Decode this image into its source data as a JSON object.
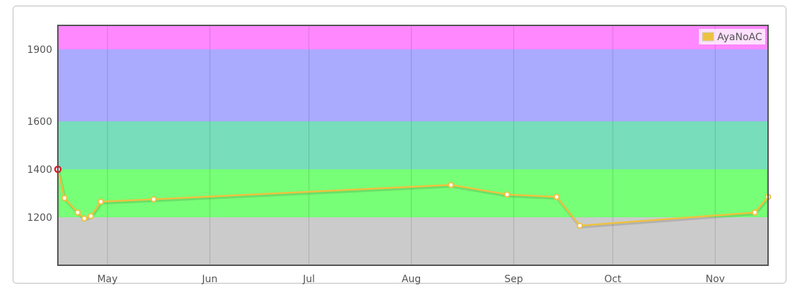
{
  "chart_data": {
    "type": "line",
    "x_axis": {
      "type": "date",
      "tick_labels": [
        "May",
        "Jun",
        "Jul",
        "Aug",
        "Sep",
        "Oct",
        "Nov"
      ],
      "tick_dates": [
        "2014-05-01",
        "2014-06-01",
        "2014-07-01",
        "2014-08-01",
        "2014-09-01",
        "2014-10-01",
        "2014-11-01"
      ],
      "range": [
        "2014-04-16",
        "2014-11-17"
      ]
    },
    "y_axis": {
      "tick_labels": [
        "1200",
        "1400",
        "1600",
        "1900"
      ],
      "tick_values": [
        1200,
        1400,
        1600,
        1900
      ],
      "range": [
        1000,
        2000
      ],
      "scale": "linear"
    },
    "grid": "vertical lines at month ticks",
    "legend": {
      "position": "top-right",
      "entries": [
        "AyaNoAC"
      ]
    },
    "bands": [
      {
        "from": 1000,
        "to": 1200,
        "color": "#cbcbcb"
      },
      {
        "from": 1200,
        "to": 1400,
        "color": "#77ff77"
      },
      {
        "from": 1400,
        "to": 1600,
        "color": "#77ddbb"
      },
      {
        "from": 1600,
        "to": 1900,
        "color": "#aaaaff"
      },
      {
        "from": 1900,
        "to": 2000,
        "color": "#ff88ff"
      }
    ],
    "series": [
      {
        "name": "AyaNoAC",
        "color": "#edc240",
        "points": [
          {
            "x": "2014-04-16",
            "y": 1400,
            "highlighted": true
          },
          {
            "x": "2014-04-18",
            "y": 1280
          },
          {
            "x": "2014-04-22",
            "y": 1220
          },
          {
            "x": "2014-04-24",
            "y": 1195
          },
          {
            "x": "2014-04-26",
            "y": 1205
          },
          {
            "x": "2014-04-29",
            "y": 1265
          },
          {
            "x": "2014-05-15",
            "y": 1275
          },
          {
            "x": "2014-08-13",
            "y": 1335
          },
          {
            "x": "2014-08-30",
            "y": 1295
          },
          {
            "x": "2014-09-14",
            "y": 1285
          },
          {
            "x": "2014-09-21",
            "y": 1165
          },
          {
            "x": "2014-11-13",
            "y": 1220
          },
          {
            "x": "2014-11-17",
            "y": 1285
          }
        ]
      }
    ]
  }
}
